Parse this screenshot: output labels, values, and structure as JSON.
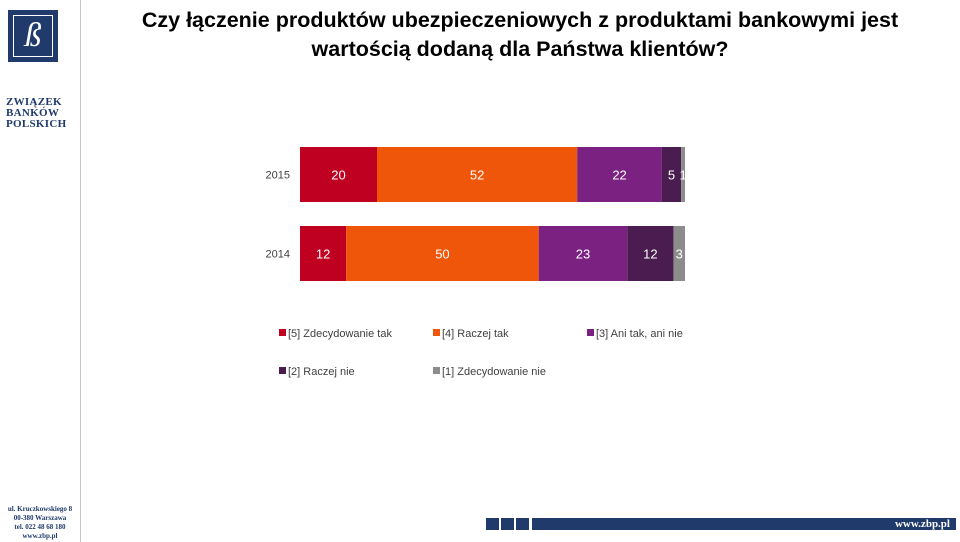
{
  "slide": {
    "title_line1": "Czy łączenie produktów ubezpieczeniowych z produktami bankowymi jest",
    "title_line2": "wartością dodaną dla Państwa klientów?"
  },
  "logo": {
    "letter": "ß",
    "line1": "ZWIĄZEK",
    "line2": "BANKÓW",
    "line3": "POLSKICH"
  },
  "address": {
    "street": "ul. Kruczkowskiego 8",
    "city": "00-380 Warszawa",
    "phone": "tel. 022 48 68 180",
    "web": "www.zbp.pl"
  },
  "footer": {
    "url": "www.zbp.pl"
  },
  "colors": {
    "brand": "#1f3a6b",
    "s5": "#c00020",
    "s4": "#f0560a",
    "s3": "#7a2182",
    "s2": "#4b1c4f",
    "s1": "#8c8c8c"
  },
  "chart_data": {
    "type": "bar",
    "orientation": "horizontal",
    "stacked": true,
    "categories": [
      "2015",
      "2014"
    ],
    "series": [
      {
        "name": "[5] Zdecydowanie tak",
        "values": [
          20,
          12
        ],
        "color": "#c00020"
      },
      {
        "name": "[4] Raczej tak",
        "values": [
          52,
          50
        ],
        "color": "#f0560a"
      },
      {
        "name": "[3] Ani tak, ani nie",
        "values": [
          22,
          23
        ],
        "color": "#7a2182"
      },
      {
        "name": "[2] Raczej nie",
        "values": [
          5,
          12
        ],
        "color": "#4b1c4f"
      },
      {
        "name": "[1] Zdecydowanie nie",
        "values": [
          1,
          3
        ],
        "color": "#8c8c8c"
      }
    ],
    "xlim": [
      0,
      100
    ],
    "legend_position": "bottom",
    "grid": false,
    "data_labels": true
  }
}
